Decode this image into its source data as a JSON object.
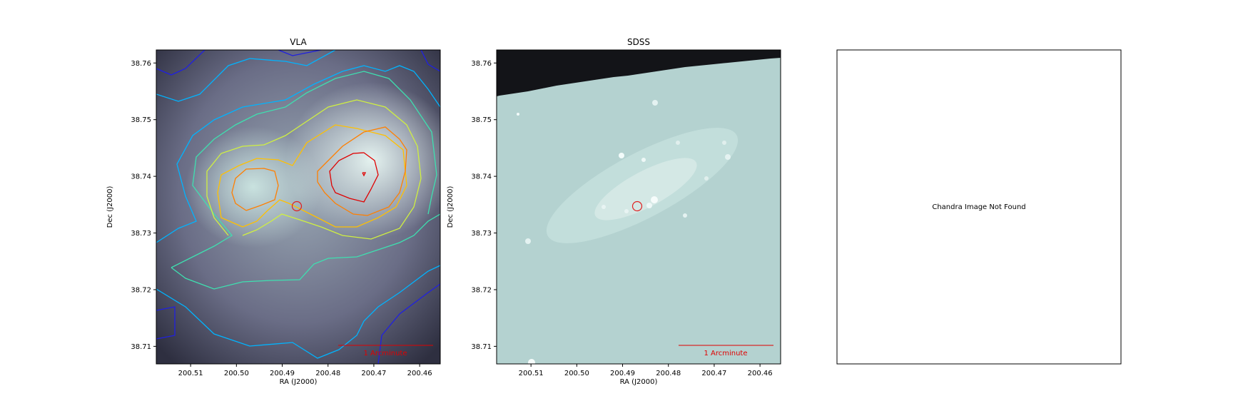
{
  "chart_data": [
    {
      "type": "contour",
      "title": "VLA",
      "xlabel": "RA (J2000)",
      "ylabel": "Dec (J2000)",
      "xlim": [
        200.5175,
        200.4555
      ],
      "ylim": [
        38.7069,
        38.7623
      ],
      "x_ticks": [
        "200.51",
        "200.50",
        "200.49",
        "200.48",
        "200.47",
        "200.46"
      ],
      "y_ticks": [
        "38.71",
        "38.72",
        "38.73",
        "38.74",
        "38.75",
        "38.76"
      ],
      "image": "radio continuum (bone colormap), two peaks",
      "contour_colors": [
        "#1a1aff",
        "#00bfff",
        "#40e0a0",
        "#c8f040",
        "#ffc000",
        "#ff7f00",
        "#e00000"
      ],
      "marker": {
        "ra": 200.4863,
        "dec": 38.7348,
        "shape": "circle",
        "color": "#e02020"
      },
      "scalebar": {
        "label": "1 Arcminute",
        "color": "#e00000"
      }
    },
    {
      "type": "image",
      "title": "SDSS",
      "xlabel": "RA (J2000)",
      "ylabel": "Dec (J2000)",
      "xlim": [
        200.5175,
        200.4555
      ],
      "ylim": [
        38.7069,
        38.7623
      ],
      "x_ticks": [
        "200.51",
        "200.50",
        "200.49",
        "200.48",
        "200.47",
        "200.46"
      ],
      "y_ticks": [
        "38.71",
        "38.72",
        "38.73",
        "38.74",
        "38.75",
        "38.76"
      ],
      "image": "optical galaxy field (bone colormap), blank region top",
      "marker": {
        "ra": 200.4863,
        "dec": 38.7348,
        "shape": "circle",
        "color": "#e02020"
      },
      "scalebar": {
        "label": "1 Arcminute",
        "color": "#e00000"
      }
    },
    {
      "type": "placeholder",
      "title": "",
      "message": "Chandra Image Not Found"
    }
  ]
}
